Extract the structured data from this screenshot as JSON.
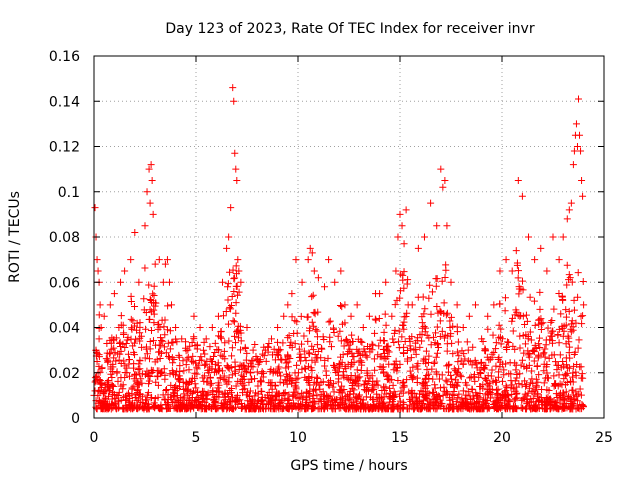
{
  "chart_data": {
    "type": "scatter",
    "title": "Day 123 of 2023, Rate Of TEC Index for receiver invr",
    "xlabel": "GPS time / hours",
    "ylabel": "ROTI / TECUs",
    "xlim": [
      0,
      25
    ],
    "ylim": [
      0,
      0.16
    ],
    "xticks": [
      0,
      5,
      10,
      15,
      20,
      25
    ],
    "xtick_labels": [
      "0",
      "5",
      "10",
      "15",
      "20",
      "25"
    ],
    "yticks": [
      0,
      0.02,
      0.04,
      0.06,
      0.08,
      0.1,
      0.12,
      0.14,
      0.16
    ],
    "ytick_labels": [
      "0",
      "0.02",
      "0.04",
      "0.06",
      "0.08",
      "0.1",
      "0.12",
      "0.14",
      "0.16"
    ],
    "grid": true,
    "marker": "plus",
    "marker_color": "#ff0000",
    "series": [
      {
        "x": [
          0.0,
          0.05,
          0.1,
          0.15,
          0.2,
          0.25,
          0.3,
          0.35,
          0.1,
          0.2,
          0.3,
          0.05,
          0.15,
          0.25,
          0.5,
          0.8,
          1.0,
          1.3,
          1.5,
          1.8,
          2.0,
          2.2,
          2.5,
          2.6,
          2.7,
          2.75,
          2.8,
          2.85,
          2.9,
          3.0,
          3.2,
          3.4,
          3.5,
          3.6,
          3.7,
          3.8,
          4.0,
          4.3,
          4.6,
          4.9,
          5.2,
          5.5,
          5.8,
          6.1,
          6.3,
          6.5,
          6.6,
          6.7,
          6.8,
          6.85,
          6.9,
          6.95,
          7.0,
          7.05,
          7.1,
          7.2,
          7.5,
          7.8,
          8.1,
          8.4,
          8.7,
          9.0,
          9.3,
          9.5,
          9.7,
          9.9,
          10.2,
          10.5,
          10.6,
          10.7,
          10.8,
          11.0,
          11.3,
          11.5,
          11.8,
          12.1,
          12.3,
          12.6,
          12.9,
          13.2,
          13.5,
          13.8,
          14.0,
          14.3,
          14.6,
          14.8,
          14.9,
          15.0,
          15.1,
          15.2,
          15.3,
          15.4,
          15.6,
          15.9,
          16.2,
          16.5,
          16.8,
          17.0,
          17.1,
          17.2,
          17.3,
          17.5,
          17.8,
          18.1,
          18.4,
          18.7,
          19.0,
          19.3,
          19.6,
          19.9,
          20.2,
          20.5,
          20.7,
          20.8,
          21.0,
          21.3,
          21.6,
          21.9,
          22.2,
          22.5,
          22.8,
          23.0,
          23.2,
          23.3,
          23.4,
          23.5,
          23.55,
          23.6,
          23.65,
          23.7,
          23.75,
          23.8,
          23.85,
          23.9,
          23.95,
          24.0
        ],
        "y": [
          0.01,
          0.093,
          0.08,
          0.07,
          0.065,
          0.06,
          0.05,
          0.04,
          0.03,
          0.02,
          0.015,
          0.012,
          0.025,
          0.035,
          0.045,
          0.05,
          0.055,
          0.06,
          0.065,
          0.07,
          0.082,
          0.06,
          0.085,
          0.1,
          0.11,
          0.095,
          0.112,
          0.105,
          0.09,
          0.068,
          0.07,
          0.06,
          0.068,
          0.07,
          0.06,
          0.05,
          0.04,
          0.035,
          0.03,
          0.045,
          0.04,
          0.035,
          0.04,
          0.045,
          0.06,
          0.075,
          0.08,
          0.093,
          0.146,
          0.14,
          0.117,
          0.11,
          0.105,
          0.07,
          0.065,
          0.06,
          0.04,
          0.03,
          0.025,
          0.03,
          0.035,
          0.04,
          0.045,
          0.05,
          0.055,
          0.07,
          0.06,
          0.07,
          0.075,
          0.073,
          0.065,
          0.062,
          0.058,
          0.07,
          0.06,
          0.065,
          0.05,
          0.045,
          0.05,
          0.04,
          0.045,
          0.055,
          0.055,
          0.06,
          0.045,
          0.065,
          0.08,
          0.09,
          0.085,
          0.077,
          0.092,
          0.05,
          0.05,
          0.075,
          0.08,
          0.095,
          0.085,
          0.11,
          0.102,
          0.105,
          0.085,
          0.06,
          0.05,
          0.04,
          0.045,
          0.05,
          0.035,
          0.045,
          0.05,
          0.065,
          0.07,
          0.065,
          0.074,
          0.105,
          0.098,
          0.08,
          0.07,
          0.075,
          0.065,
          0.08,
          0.07,
          0.08,
          0.088,
          0.092,
          0.095,
          0.112,
          0.118,
          0.125,
          0.13,
          0.12,
          0.141,
          0.125,
          0.118,
          0.105,
          0.098,
          0.05
        ]
      }
    ]
  }
}
